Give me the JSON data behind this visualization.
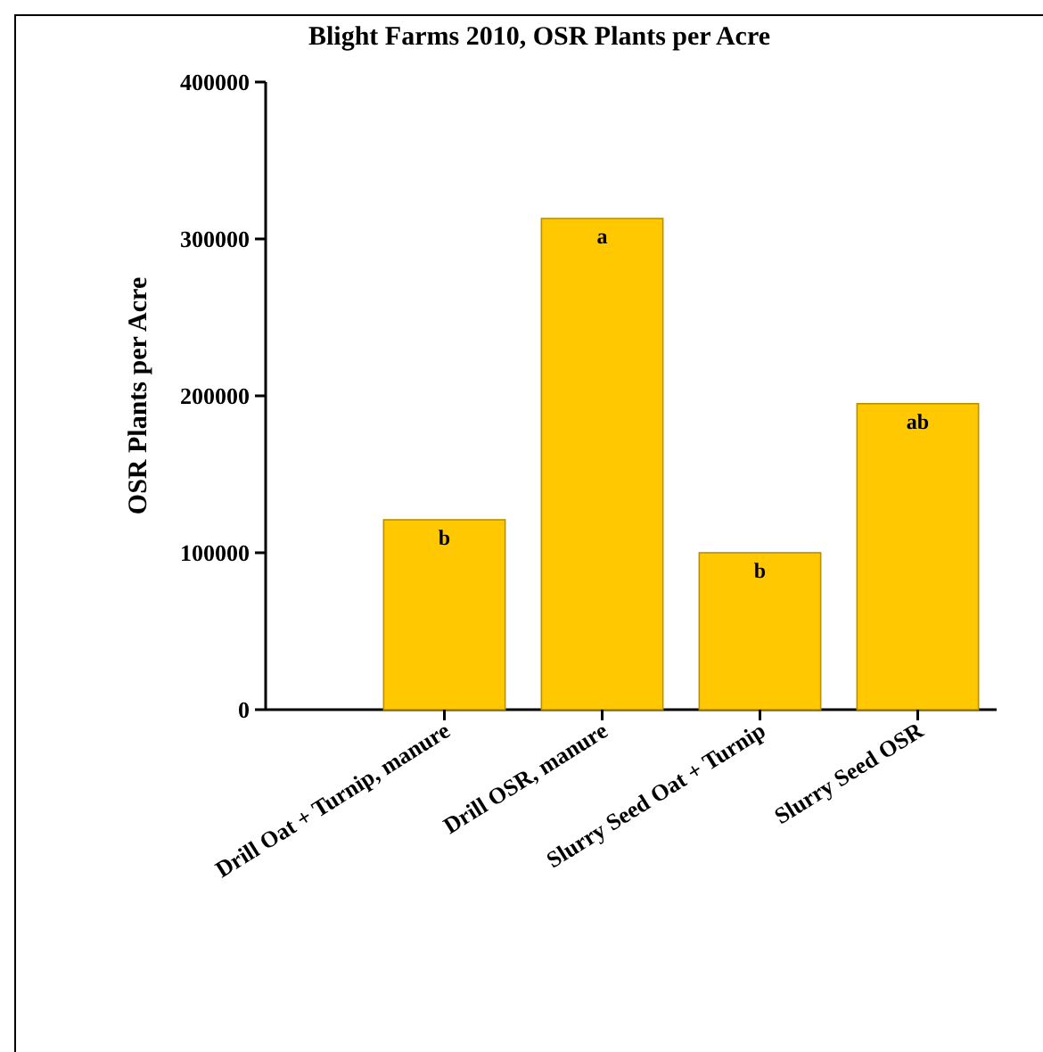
{
  "chart_data": {
    "type": "bar",
    "title": "Blight Farms 2010, OSR Plants per Acre",
    "ylabel": "OSR Plants per Acre",
    "categories": [
      "Drill Oat + Turnip, manure",
      "Drill OSR, manure",
      "Slurry Seed Oat + Turnip",
      "Slurry Seed OSR"
    ],
    "values": [
      121000,
      313000,
      100000,
      195000
    ],
    "color": "#ffc800",
    "ylim": [
      0,
      400000
    ],
    "yticks": [
      0,
      100000,
      200000,
      300000,
      400000
    ],
    "annotations": [
      {
        "text": "b",
        "x": "Drill Oat + Turnip, manure",
        "y": 121000
      },
      {
        "text": "a",
        "x": "Drill OSR, manure",
        "y": 313000
      },
      {
        "text": "b",
        "x": "Slurry Seed Oat + Turnip",
        "y": 100000
      },
      {
        "text": "ab",
        "x": "Slurry Seed OSR",
        "y": 195000
      }
    ]
  }
}
